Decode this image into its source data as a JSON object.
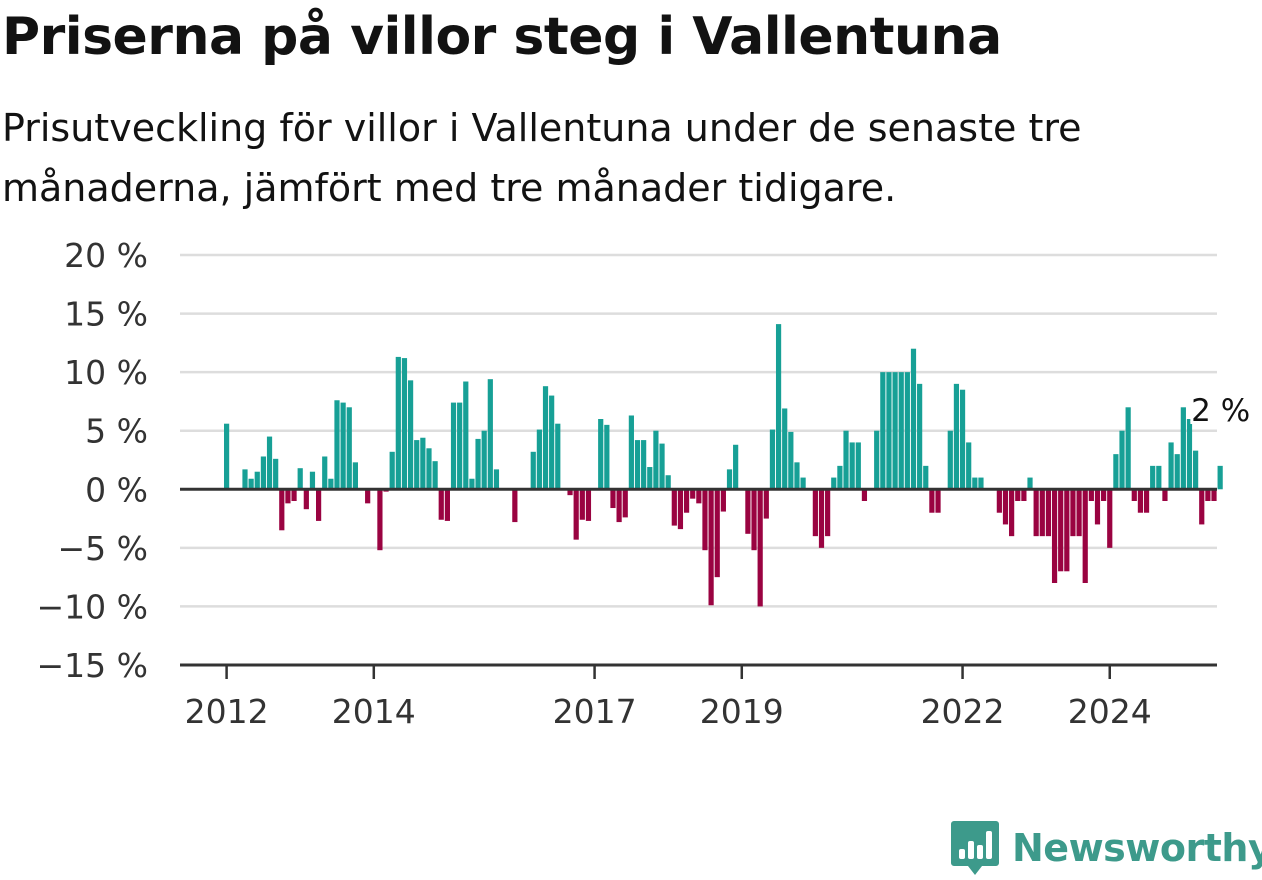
{
  "title": "Priserna på villor steg i Vallentuna",
  "subtitle": "Prisutveckling för villor i Vallentuna under de senaste tre månaderna, jämfört med tre månader tidigare.",
  "brand": {
    "name": "Newsworthy",
    "color": "#3d9a8b"
  },
  "chart_data": {
    "type": "bar",
    "title": "",
    "xlabel": "",
    "ylabel": "",
    "ylim": [
      -15,
      20
    ],
    "yticks": [
      20,
      15,
      10,
      5,
      0,
      -5,
      -10,
      -15
    ],
    "ytick_labels": [
      "20 %",
      "15 %",
      "10 %",
      "5 %",
      "0 %",
      "−5 %",
      "−10 %",
      "−15 %"
    ],
    "xticks": [
      "2012",
      "2014",
      "2017",
      "2019",
      "2022",
      "2024"
    ],
    "grid": true,
    "colors": {
      "positive": "#17a096",
      "negative": "#9a0341",
      "axis": "#333333",
      "grid": "#dddddd"
    },
    "last_value_label": "2 %",
    "start": "2012-01",
    "frequency": "monthly",
    "values": [
      5.6,
      0,
      0,
      1.7,
      0.9,
      1.5,
      2.8,
      4.5,
      2.6,
      -3.5,
      -1.2,
      -1.0,
      1.8,
      -1.7,
      1.5,
      -2.7,
      2.8,
      0.9,
      7.6,
      7.4,
      7.0,
      2.3,
      0,
      -1.2,
      0,
      -5.2,
      -0.2,
      3.2,
      11.3,
      11.2,
      9.3,
      4.2,
      4.4,
      3.5,
      2.4,
      -2.6,
      -2.7,
      7.4,
      7.4,
      9.2,
      0.9,
      4.3,
      5.0,
      9.4,
      1.7,
      0,
      0,
      -2.8,
      0,
      0,
      3.2,
      5.1,
      8.8,
      8.0,
      5.6,
      0,
      -0.5,
      -4.3,
      -2.6,
      -2.7,
      0,
      6.0,
      5.5,
      -1.6,
      -2.8,
      -2.4,
      6.3,
      4.2,
      4.2,
      1.9,
      5.0,
      3.9,
      1.2,
      -3.1,
      -3.4,
      -2.0,
      -0.8,
      -1.2,
      -5.2,
      -9.9,
      -7.5,
      -1.9,
      1.7,
      3.8,
      0,
      -3.8,
      -5.2,
      -10.0,
      -2.5,
      5.1,
      14.1,
      6.9,
      4.9,
      2.3,
      1.0,
      0,
      -4.0,
      -5.0,
      -4.0,
      1.0,
      2.0,
      5.0,
      4.0,
      4.0,
      -1.0,
      0,
      5.0,
      10.0,
      10.0,
      10.0,
      10.0,
      10.0,
      12.0,
      9.0,
      2.0,
      -2.0,
      -2.0,
      0,
      5.0,
      9.0,
      8.5,
      4.0,
      1.0,
      1.0,
      0,
      0,
      -2.0,
      -3.0,
      -4.0,
      -1.0,
      -1.0,
      1.0,
      -4.0,
      -4.0,
      -4.0,
      -8.0,
      -7.0,
      -7.0,
      -4.0,
      -4.0,
      -8.0,
      -1.0,
      -3.0,
      -1.0,
      -5.0,
      3.0,
      5.0,
      7.0,
      -1.0,
      -2.0,
      -2.0,
      2.0,
      2.0,
      -1.0,
      4.0,
      3.0,
      7.0,
      6.0,
      3.3,
      -3.0,
      -1.0,
      -1.0,
      2.0
    ]
  }
}
